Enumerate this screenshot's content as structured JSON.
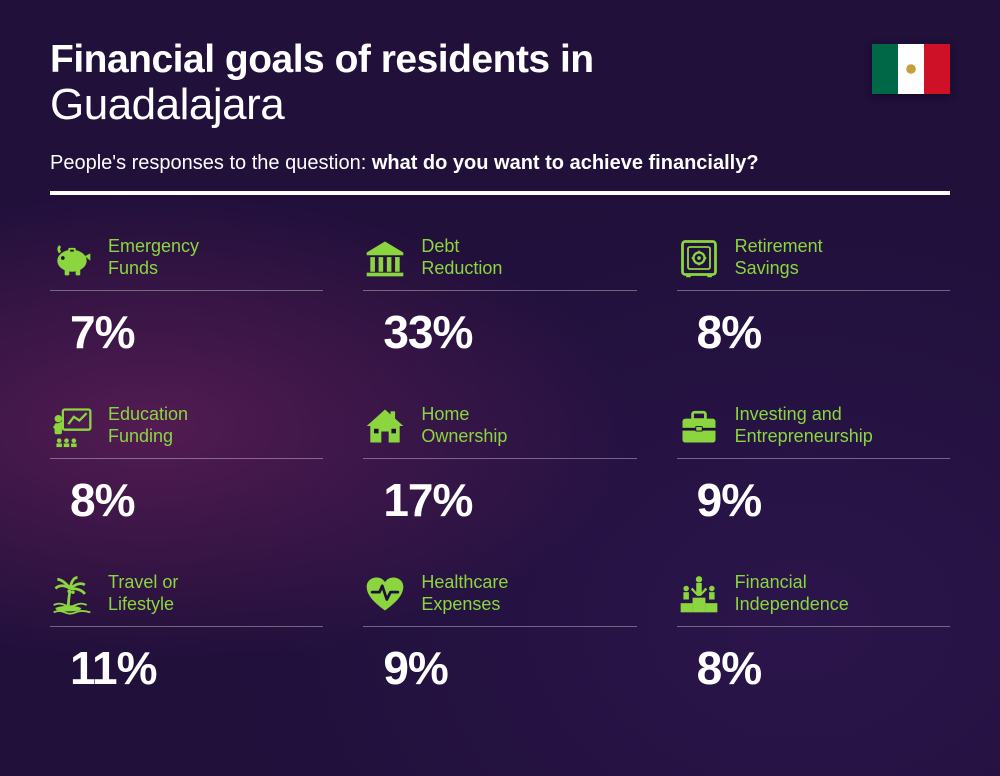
{
  "colors": {
    "accent": "#8bd63f",
    "text": "#ffffff",
    "flag_green": "#006847",
    "flag_white": "#ffffff",
    "flag_red": "#ce1126",
    "flag_emblem": "#b8860b"
  },
  "header": {
    "title_line1": "Financial goals of residents in",
    "title_line2": "Guadalajara",
    "subtitle_prefix": "People's responses to the question: ",
    "subtitle_bold": "what do you want to achieve financially?"
  },
  "items": [
    {
      "icon": "piggy-bank",
      "label_l1": "Emergency",
      "label_l2": "Funds",
      "percent": "7%"
    },
    {
      "icon": "bank",
      "label_l1": "Debt",
      "label_l2": "Reduction",
      "percent": "33%"
    },
    {
      "icon": "safe",
      "label_l1": "Retirement",
      "label_l2": "Savings",
      "percent": "8%"
    },
    {
      "icon": "education",
      "label_l1": "Education",
      "label_l2": "Funding",
      "percent": "8%"
    },
    {
      "icon": "house",
      "label_l1": "Home",
      "label_l2": "Ownership",
      "percent": "17%"
    },
    {
      "icon": "briefcase",
      "label_l1": "Investing and",
      "label_l2": "Entrepreneurship",
      "percent": "9%"
    },
    {
      "icon": "palm",
      "label_l1": "Travel or",
      "label_l2": "Lifestyle",
      "percent": "11%"
    },
    {
      "icon": "heart",
      "label_l1": "Healthcare",
      "label_l2": "Expenses",
      "percent": "9%"
    },
    {
      "icon": "podium",
      "label_l1": "Financial",
      "label_l2": "Independence",
      "percent": "8%"
    }
  ]
}
